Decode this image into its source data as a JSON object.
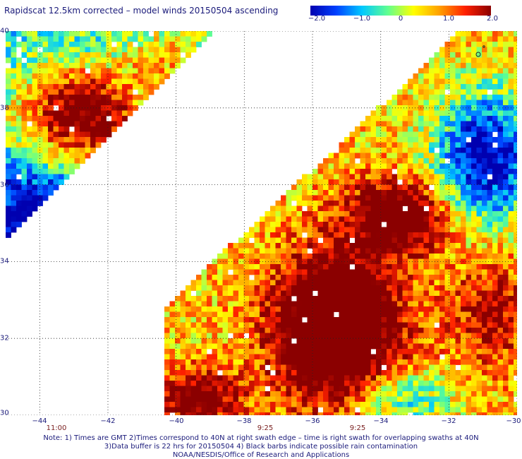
{
  "title": "Rapidscat 12.5km corrected – model winds 20150504 ascending",
  "colorbar": {
    "labels": [
      "−2.0",
      "−1.0",
      "0",
      "1.0",
      "2.0"
    ],
    "values": [
      -2.0,
      -1.0,
      0,
      1.0,
      2.0
    ],
    "range": [
      -2.0,
      2.0
    ],
    "colors": [
      "#0000b0",
      "#0040ff",
      "#00c8ff",
      "#60ff90",
      "#ffff00",
      "#ffa000",
      "#ff2000",
      "#8b0000"
    ]
  },
  "map": {
    "lon_range": [
      -45,
      -30
    ],
    "lat_range": [
      30,
      40
    ],
    "lon_ticks": [
      "−44",
      "−42",
      "−40",
      "−38",
      "−36",
      "−34",
      "−32",
      "−30"
    ],
    "lon_tick_values": [
      -44,
      -42,
      -40,
      -38,
      -36,
      -34,
      -32,
      -30
    ],
    "lat_ticks": [
      "30",
      "32",
      "34",
      "36",
      "38",
      "40"
    ],
    "lat_tick_values": [
      30,
      32,
      34,
      36,
      38,
      40
    ],
    "grid": "dotted"
  },
  "swath_times": [
    {
      "label": "11:00",
      "lon": -43.5
    },
    {
      "label": "9:25",
      "lon": -37.9
    },
    {
      "label": "9:25",
      "lon": -35.1
    }
  ],
  "notes": [
    "Note: 1) Times are GMT 2)Times correspond to 40N at right swath edge – time is right swath for overlapping swaths at 40N",
    "3)Data buffer is 22 hrs for 20150504 4) Black barbs indicate possible rain contamination",
    "NOAA/NESDIS/Office of Research and Applications"
  ]
}
